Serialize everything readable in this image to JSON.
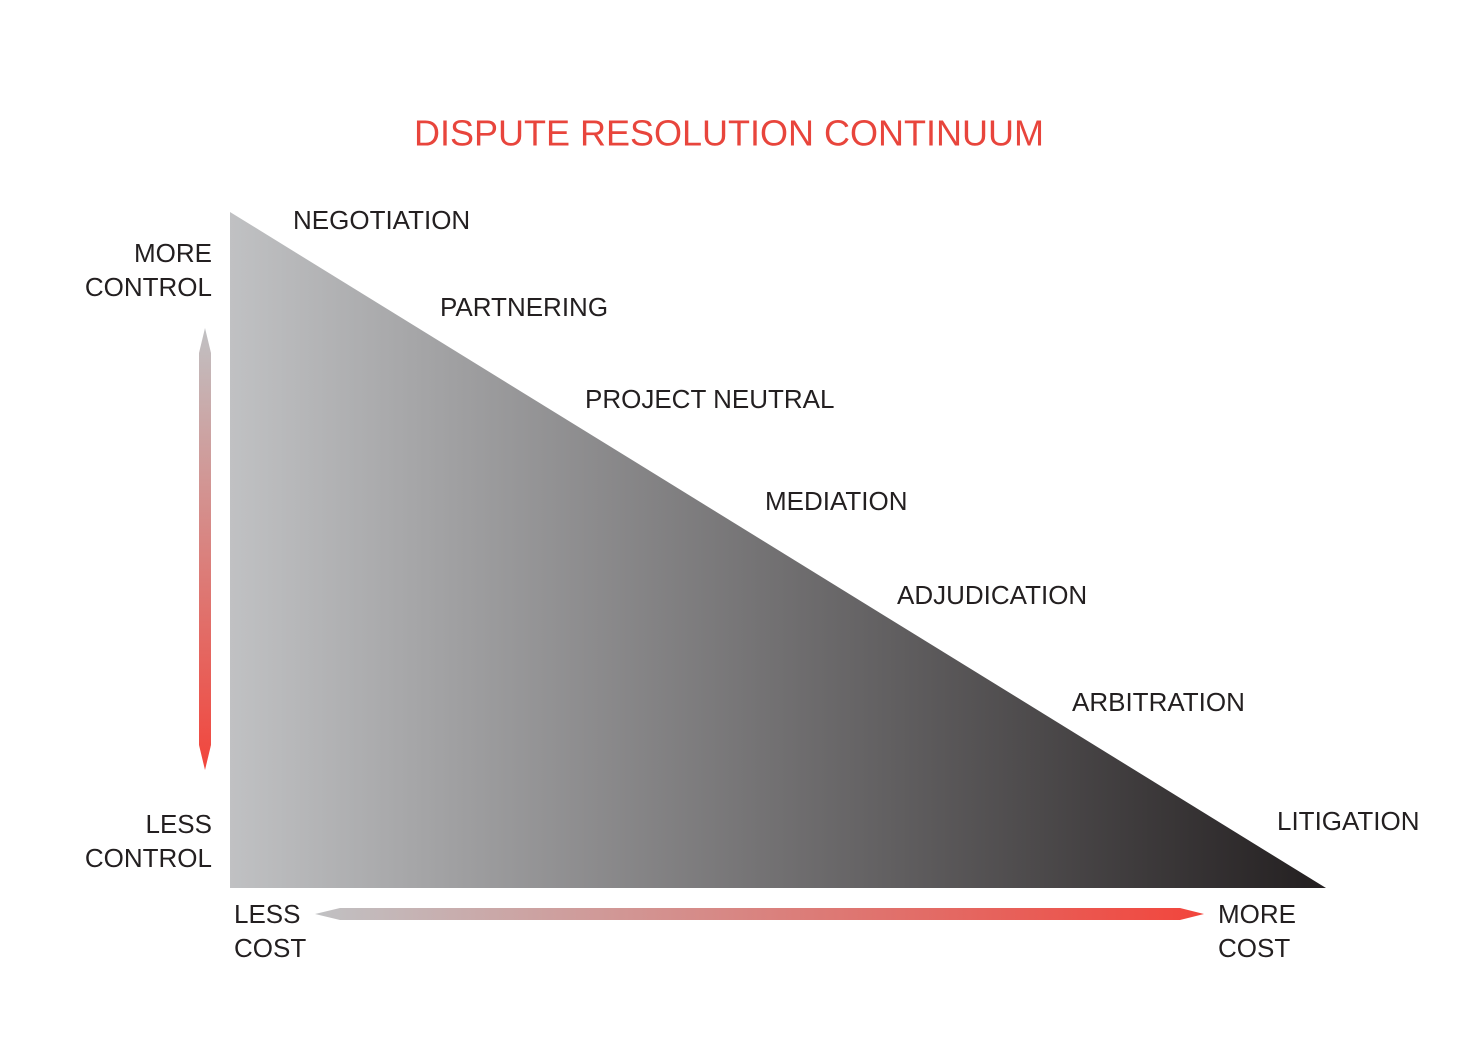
{
  "title": "DISPUTE RESOLUTION CONTINUUM",
  "stages": [
    "NEGOTIATION",
    "PARTNERING",
    "PROJECT NEUTRAL",
    "MEDIATION",
    "ADJUDICATION",
    "ARBITRATION",
    "LITIGATION"
  ],
  "control_axis": {
    "top": [
      "MORE",
      "CONTROL"
    ],
    "bottom": [
      "LESS",
      "CONTROL"
    ]
  },
  "cost_axis": {
    "left": [
      "LESS",
      "COST"
    ],
    "right": [
      "MORE",
      "COST"
    ]
  }
}
